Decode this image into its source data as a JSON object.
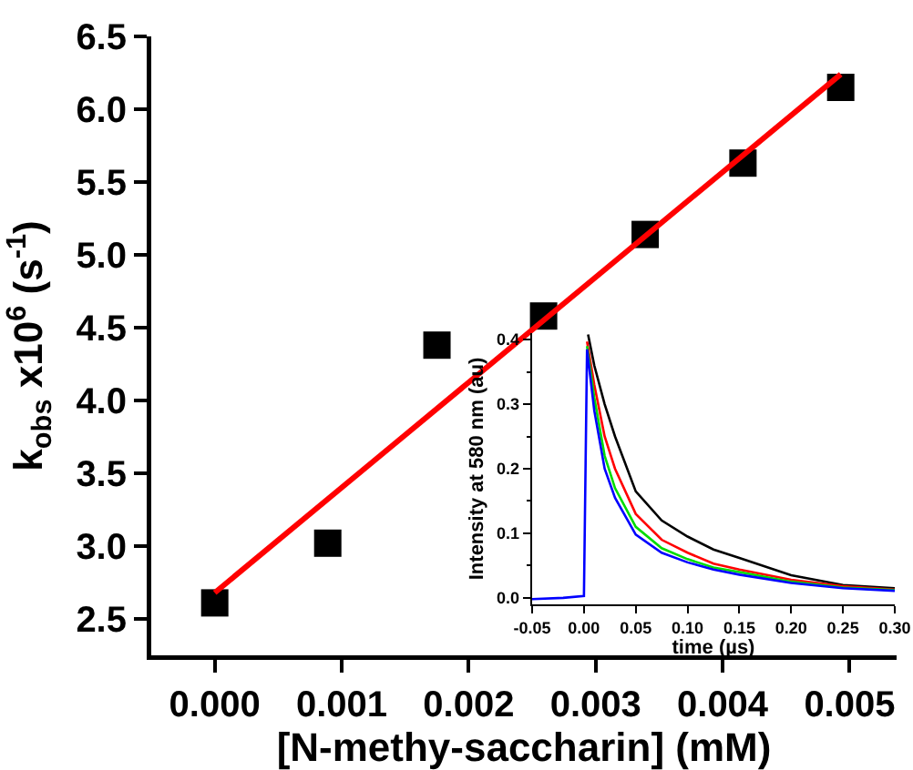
{
  "chart_data": [
    {
      "type": "scatter",
      "xlabel": "[N-methy-saccharin] (mM)",
      "ylabel": "k$_{obs}$ x10$^{6}$ (s$^{-1}$)",
      "xlim": [
        -0.0005,
        0.00537
      ],
      "ylim": [
        2.25,
        6.5
      ],
      "xticks": [
        {
          "value": 0,
          "label": "0.000"
        },
        {
          "value": 0.001,
          "label": "0.001"
        },
        {
          "value": 0.002,
          "label": "0.002"
        },
        {
          "value": 0.003,
          "label": "0.003"
        },
        {
          "value": 0.004,
          "label": "0.004"
        },
        {
          "value": 0.005,
          "label": "0.005"
        }
      ],
      "yticks": [
        2.5,
        {
          "value": 3,
          "label": "3.0"
        },
        3.5,
        {
          "value": 4,
          "label": "4.0"
        },
        4.5,
        {
          "value": 5,
          "label": "5.0"
        },
        5.5,
        {
          "value": 6,
          "label": "6.0"
        },
        6.5
      ],
      "grid": false,
      "series": [
        {
          "type": "scatter",
          "marker": "square",
          "color": "#000000",
          "x": [
            0,
            0.00089,
            0.00175,
            0.00259,
            0.00339,
            0.00416,
            0.00493
          ],
          "values": [
            2.61,
            3.02,
            4.38,
            4.58,
            5.14,
            5.63,
            6.15
          ]
        },
        {
          "type": "line",
          "line_style": "solid",
          "color": "#ff0000",
          "x": [
            0,
            0.00493
          ],
          "values": [
            2.68,
            6.24
          ]
        }
      ]
    },
    {
      "type": "line",
      "xlabel": "time (µs)",
      "ylabel": "Intensity at 580 nm (au)",
      "xlim": [
        -0.05,
        0.3
      ],
      "ylim": [
        -0.01,
        0.41
      ],
      "xticks": [
        {
          "value": -0.05,
          "label": "-0.05"
        },
        {
          "value": 0,
          "label": "0.00"
        },
        0.05,
        {
          "value": 0.1,
          "label": "0.10"
        },
        0.15,
        {
          "value": 0.2,
          "label": "0.20"
        },
        0.25,
        {
          "value": 0.3,
          "label": "0.30"
        }
      ],
      "yticks": [
        {
          "value": 0,
          "label": "0.0"
        },
        0.1,
        0.2,
        0.3,
        0.4
      ],
      "grid": false,
      "marker": "none",
      "line_style": "solid",
      "series": [
        {
          "color": "#000000",
          "x": [
            0.004,
            0.01,
            0.02,
            0.03,
            0.05,
            0.075,
            0.1,
            0.125,
            0.15,
            0.2,
            0.25,
            0.3
          ],
          "values": [
            0.408,
            0.36,
            0.3,
            0.25,
            0.165,
            0.12,
            0.095,
            0.075,
            0.062,
            0.035,
            0.02,
            0.015
          ]
        },
        {
          "color": "#ff0000",
          "x": [
            0.003,
            0.01,
            0.02,
            0.03,
            0.05,
            0.075,
            0.1,
            0.125,
            0.15,
            0.2,
            0.25,
            0.3
          ],
          "values": [
            0.397,
            0.33,
            0.25,
            0.2,
            0.13,
            0.09,
            0.07,
            0.053,
            0.044,
            0.028,
            0.018,
            0.013
          ]
        },
        {
          "color": "#00dd00",
          "x": [
            0.003,
            0.01,
            0.02,
            0.03,
            0.05,
            0.075,
            0.1,
            0.125,
            0.15,
            0.2,
            0.25,
            0.3
          ],
          "values": [
            0.39,
            0.31,
            0.22,
            0.17,
            0.11,
            0.077,
            0.06,
            0.047,
            0.04,
            0.025,
            0.016,
            0.012
          ]
        },
        {
          "color": "#0000ff",
          "x": [
            -0.05,
            -0.02,
            0,
            0.003,
            0.01,
            0.02,
            0.03,
            0.05,
            0.075,
            0.1,
            0.125,
            0.15,
            0.2,
            0.25,
            0.3
          ],
          "values": [
            -0.002,
            0.0,
            0.003,
            0.385,
            0.29,
            0.2,
            0.155,
            0.098,
            0.07,
            0.055,
            0.044,
            0.036,
            0.023,
            0.015,
            0.011
          ]
        }
      ]
    }
  ]
}
